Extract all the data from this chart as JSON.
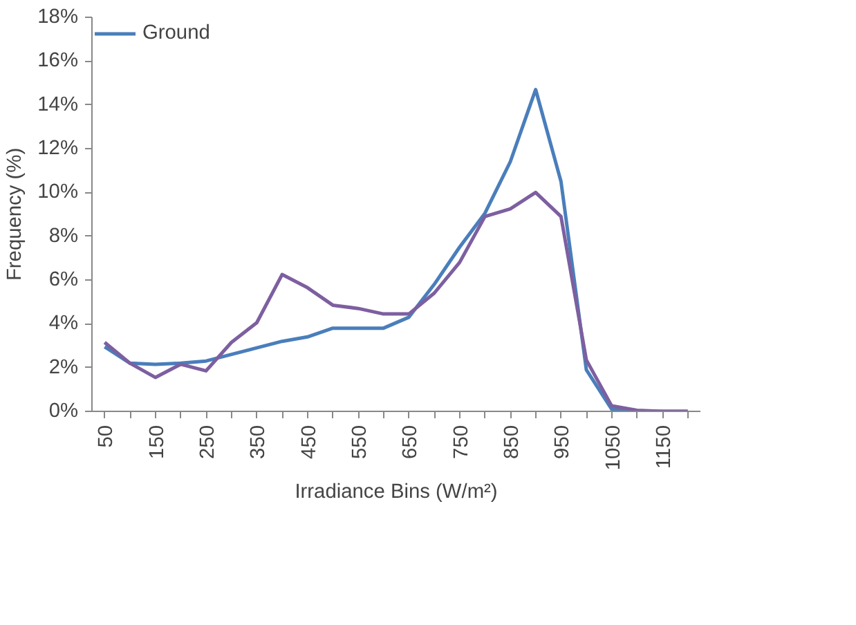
{
  "chart_data": {
    "type": "line",
    "xlabel": "Irradiance Bins (W/m²)",
    "ylabel": "Frequency (%)",
    "categories": [
      "50",
      null,
      "150",
      null,
      "250",
      null,
      "350",
      null,
      "450",
      null,
      "550",
      null,
      "650",
      null,
      "750",
      null,
      "850",
      null,
      "950",
      null,
      "1050",
      null,
      "1150",
      null
    ],
    "series": [
      {
        "name": "Ground",
        "color": "#4a7ebb",
        "values": [
          2.95,
          2.2,
          2.15,
          2.2,
          2.3,
          2.6,
          2.9,
          3.2,
          3.4,
          3.8,
          3.8,
          3.8,
          4.3,
          5.8,
          7.5,
          9.05,
          11.4,
          14.7,
          10.5,
          1.9,
          0.1,
          0,
          0,
          0
        ]
      },
      {
        "color": "#7d5fa0",
        "values": [
          3.15,
          2.2,
          1.55,
          2.15,
          1.85,
          3.15,
          4.05,
          6.25,
          5.65,
          4.85,
          4.7,
          4.45,
          4.45,
          5.4,
          6.8,
          8.9,
          9.25,
          10.0,
          8.9,
          2.35,
          0.25,
          0.05,
          0,
          0
        ]
      }
    ],
    "ylim": [
      0,
      18
    ],
    "yticks": [
      {
        "value": 0,
        "label": "0%"
      },
      {
        "value": 2,
        "label": "2%"
      },
      {
        "value": 4,
        "label": "4%"
      },
      {
        "value": 6,
        "label": "6%"
      },
      {
        "value": 8,
        "label": "8%"
      },
      {
        "value": 10,
        "label": "10%"
      },
      {
        "value": 12,
        "label": "12%"
      },
      {
        "value": 14,
        "label": "14%"
      },
      {
        "value": 16,
        "label": "16%"
      },
      {
        "value": 18,
        "label": "18%"
      }
    ],
    "grid": false,
    "legend": "top left",
    "marker": "none",
    "line_style": "solid"
  }
}
